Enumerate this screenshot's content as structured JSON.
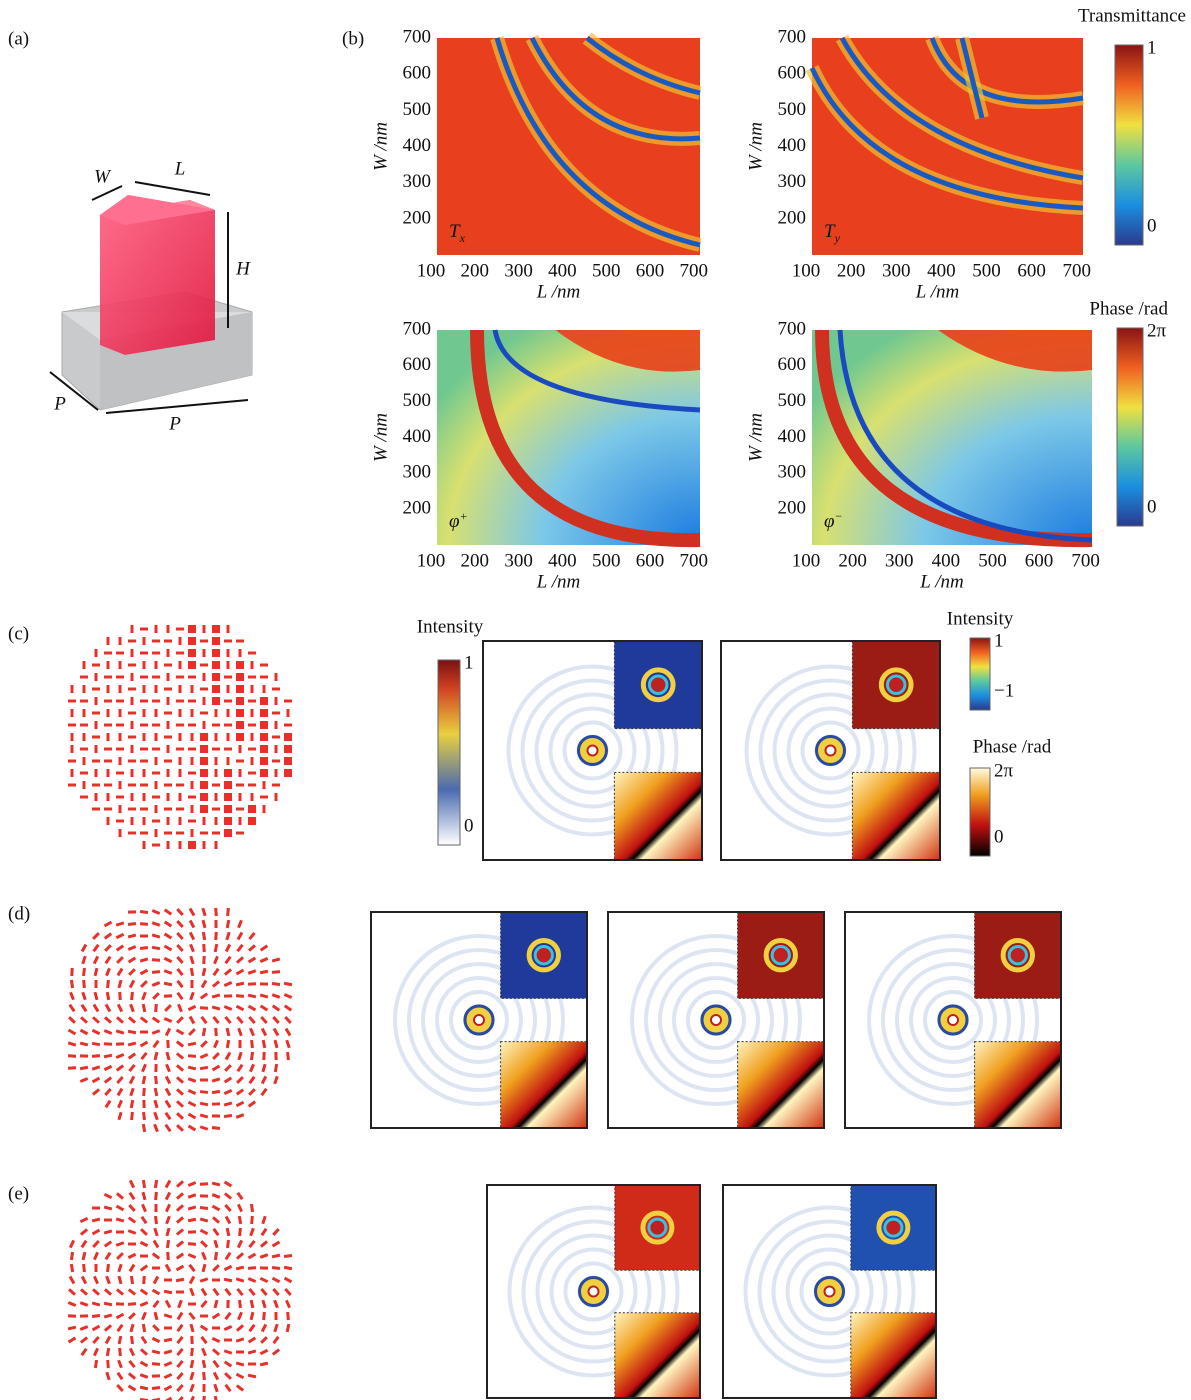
{
  "panel_labels": [
    "(a)",
    "(b)",
    "(c)",
    "(d)",
    "(e)"
  ],
  "unit_cell": {
    "labels": [
      "W",
      "L",
      "H",
      "P",
      "P"
    ]
  },
  "maps": {
    "x_label": "L /nm",
    "y_label": "W /nm",
    "x_ticks": [
      "100",
      "200",
      "300",
      "400",
      "500",
      "600",
      "700"
    ],
    "y_ticks": [
      "200",
      "300",
      "400",
      "500",
      "600",
      "700"
    ],
    "plots": [
      {
        "symbol": "T",
        "index": "x"
      },
      {
        "symbol": "T",
        "index": "y"
      },
      {
        "symbol": "φ",
        "index": "+"
      },
      {
        "symbol": "φ",
        "index": "−"
      }
    ]
  },
  "colorbars": {
    "transmittance": {
      "title": "Transmittance",
      "max": "1",
      "min": "0"
    },
    "phase": {
      "title": "Phase /rad",
      "max": "2π",
      "min": "0"
    },
    "intensity": {
      "title": "Intensity",
      "max": "1",
      "min": "0"
    },
    "intensity_signed": {
      "title": "Intensity",
      "max": "1",
      "min": "−1"
    },
    "phase_field": {
      "title": "Phase /rad",
      "max": "2π",
      "min": "0"
    }
  }
}
